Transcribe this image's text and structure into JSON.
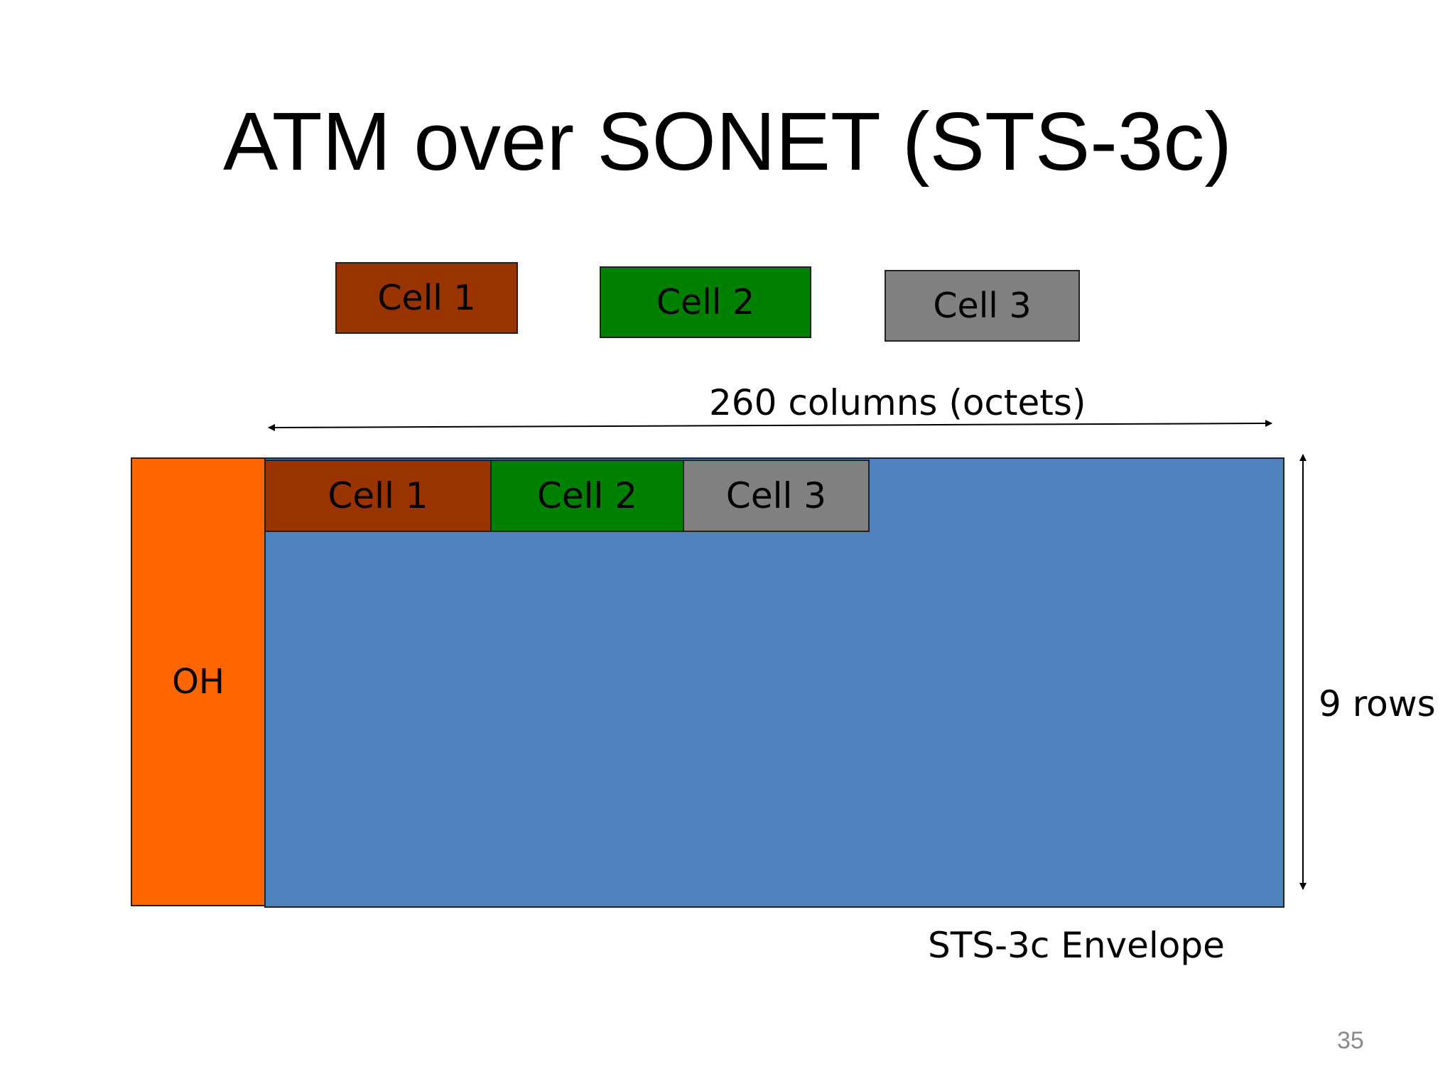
{
  "slide": {
    "title": "ATM over SONET (STS-3c)",
    "page_number": "35"
  },
  "cells_top": [
    {
      "label": "Cell 1",
      "color": "#993300"
    },
    {
      "label": "Cell 2",
      "color": "#008000"
    },
    {
      "label": "Cell 3",
      "color": "#808080"
    }
  ],
  "frame": {
    "overhead_label": "OH",
    "overhead_color": "#FF6600",
    "payload_color": "#4F81BD",
    "cells": [
      {
        "label": "Cell 1",
        "color": "#993300"
      },
      {
        "label": "Cell 2",
        "color": "#008000"
      },
      {
        "label": "Cell 3",
        "color": "#808080"
      }
    ],
    "columns_label": "260 columns (octets)",
    "rows_label": "9 rows",
    "envelope_label": "STS-3c Envelope"
  }
}
